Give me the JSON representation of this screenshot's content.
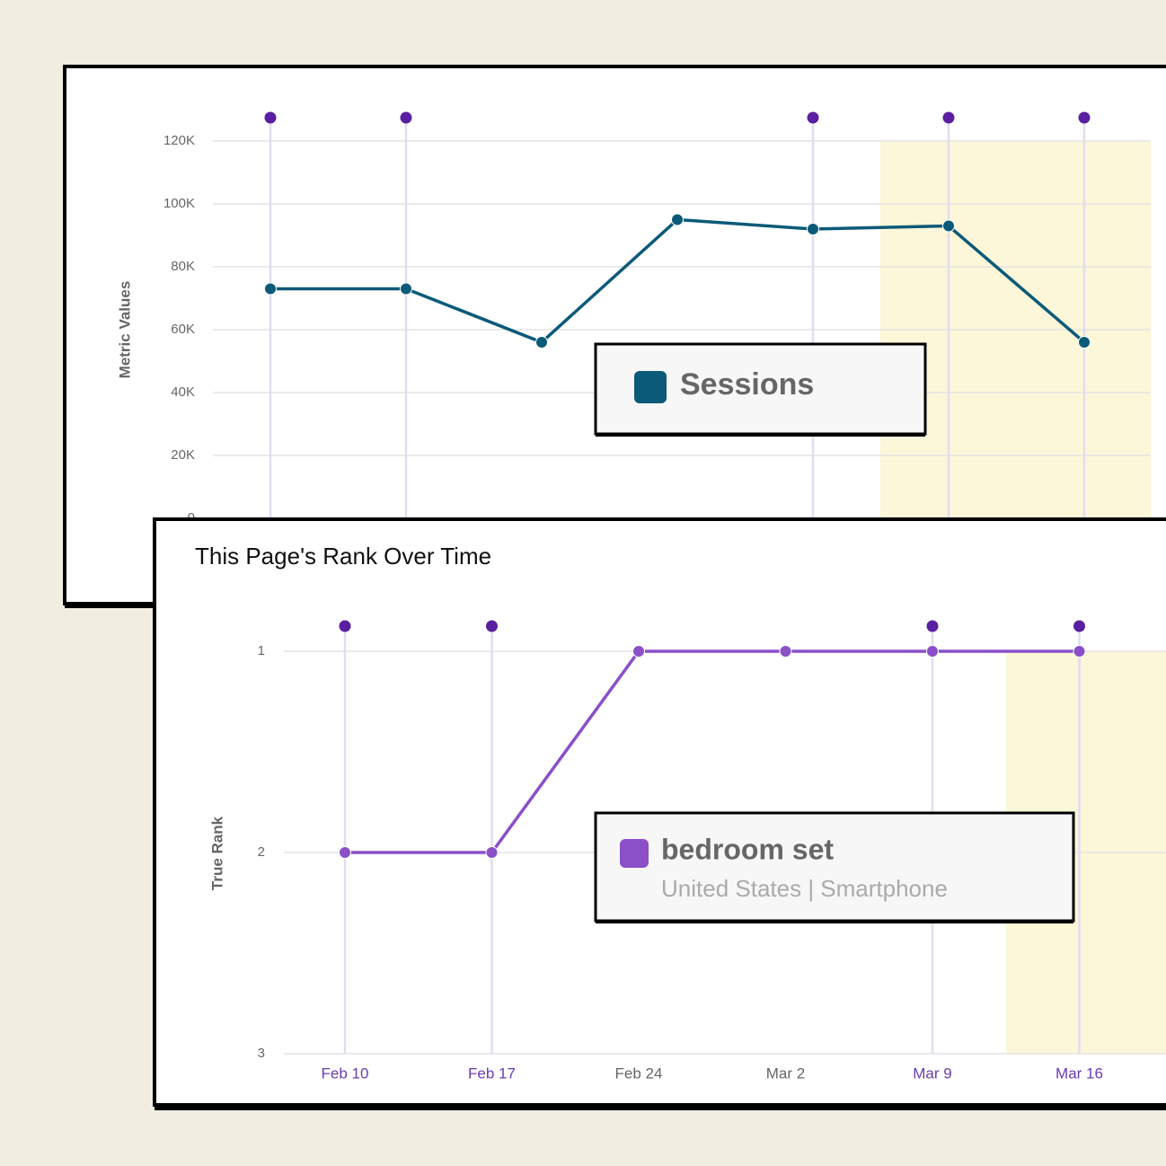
{
  "chart_data": [
    {
      "type": "line",
      "y_label": "Metric Values",
      "categories": [
        null,
        null,
        null,
        null,
        null,
        null,
        null
      ],
      "annotated": [
        true,
        true,
        false,
        false,
        true,
        true,
        true
      ],
      "series": [
        {
          "name": "Sessions",
          "color": "#0b5a78",
          "values": [
            73000,
            73000,
            56000,
            95000,
            92000,
            93000,
            56000
          ]
        }
      ],
      "ylim": [
        0,
        120000
      ],
      "yticks": [
        0,
        {
          "value": 20000,
          "label": "20K"
        },
        {
          "value": 40000,
          "label": "40K"
        },
        {
          "value": 60000,
          "label": "60K"
        },
        {
          "value": 80000,
          "label": "80K"
        },
        {
          "value": 100000,
          "label": "100K"
        },
        {
          "value": 120000,
          "label": "120K"
        }
      ],
      "grid": true
    },
    {
      "type": "line",
      "title": "This Page's Rank Over Time",
      "y_label": "True Rank",
      "categories": [
        "Feb 10",
        "Feb 17",
        "Feb 24",
        "Mar 2",
        "Mar 9",
        "Mar 16"
      ],
      "annotated": [
        true,
        true,
        false,
        false,
        true,
        true
      ],
      "series": [
        {
          "name": "bedroom set",
          "subtitle": "United States | Smartphone",
          "color": "#8b4fc8",
          "values": [
            2,
            2,
            1,
            1,
            1,
            1
          ]
        }
      ],
      "ylim": [
        1,
        3
      ],
      "inverted": true,
      "yticks": [
        1,
        2,
        3
      ],
      "grid": true
    }
  ]
}
